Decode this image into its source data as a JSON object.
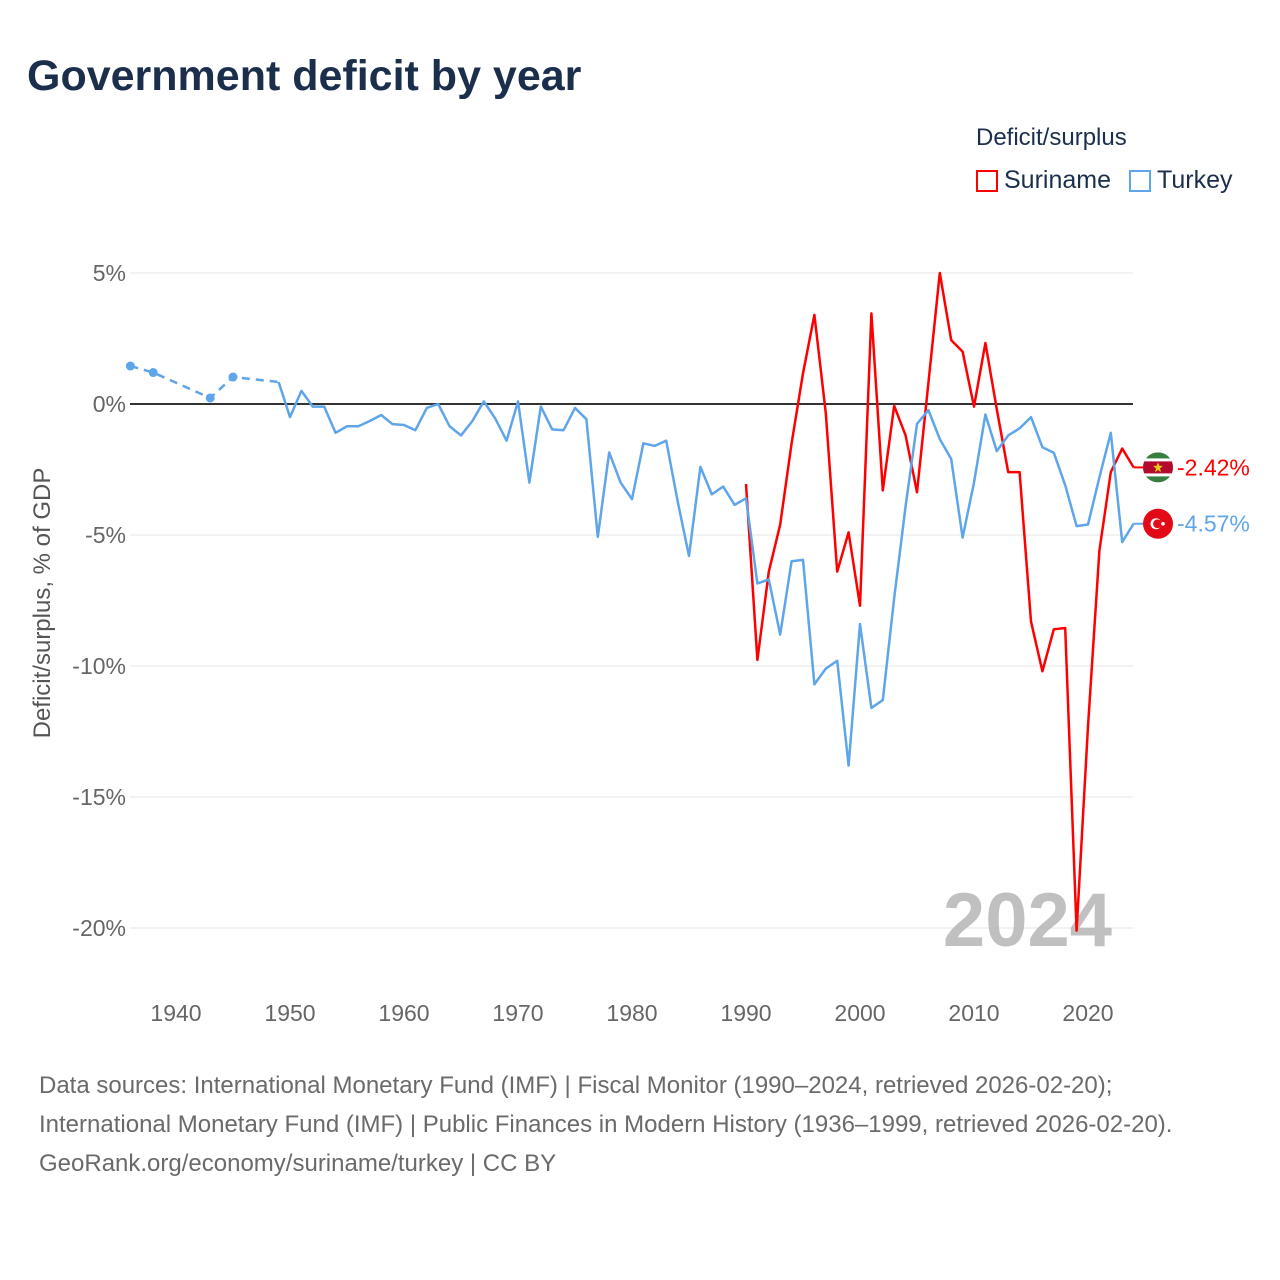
{
  "chart_data": {
    "type": "line",
    "title": "Government deficit by year",
    "ylabel": "Deficit/surplus, % of GDP",
    "xlabel": "",
    "ylim": [
      -20,
      5
    ],
    "xlim": [
      1936,
      2024
    ],
    "y_ticks": [
      5,
      0,
      -5,
      -10,
      -15,
      -20
    ],
    "y_tick_labels": [
      "5%",
      "0%",
      "-5%",
      "-10%",
      "-15%",
      "-20%"
    ],
    "x_ticks": [
      1940,
      1950,
      1960,
      1970,
      1980,
      1990,
      2000,
      2010,
      2020
    ],
    "x_tick_labels": [
      "1940",
      "1950",
      "1960",
      "1970",
      "1980",
      "1990",
      "2000",
      "2010",
      "2020"
    ],
    "grid": true,
    "legend_title": "Deficit/surplus",
    "legend_position": "top-right",
    "year_watermark": "2024",
    "series": [
      {
        "name": "Suriname",
        "color": "#ff0000",
        "end_label": "-2.42%",
        "flag": "suriname-flag",
        "x": [
          1990,
          1991,
          1992,
          1993,
          1994,
          1995,
          1996,
          1997,
          1998,
          1999,
          2000,
          2001,
          2002,
          2003,
          2004,
          2005,
          2006,
          2007,
          2008,
          2009,
          2010,
          2011,
          2012,
          2013,
          2014,
          2015,
          2016,
          2017,
          2018,
          2019,
          2020,
          2021,
          2022,
          2023,
          2024
        ],
        "y": [
          -3.05,
          -9.77,
          -6.4,
          -4.6,
          -1.5,
          1.17,
          3.4,
          -0.35,
          -6.4,
          -4.9,
          -7.7,
          3.46,
          -3.3,
          -0.07,
          -1.2,
          -3.37,
          0.8,
          5.0,
          2.44,
          2.0,
          -0.1,
          2.33,
          -0.2,
          -2.6,
          -2.6,
          -8.3,
          -10.2,
          -8.6,
          -8.55,
          -20.1,
          -12.3,
          -5.6,
          -2.6,
          -1.7,
          -2.42
        ]
      },
      {
        "name": "Turkey",
        "color": "#5ea5ea",
        "end_label": "-4.57%",
        "flag": "turkey-flag",
        "sparse_until": 1949,
        "x": [
          1936,
          1938,
          1943,
          1945,
          1949,
          1950,
          1951,
          1952,
          1953,
          1954,
          1955,
          1956,
          1957,
          1958,
          1959,
          1960,
          1961,
          1962,
          1963,
          1964,
          1965,
          1966,
          1967,
          1968,
          1969,
          1970,
          1971,
          1972,
          1973,
          1974,
          1975,
          1976,
          1977,
          1978,
          1979,
          1980,
          1981,
          1982,
          1983,
          1984,
          1985,
          1986,
          1987,
          1988,
          1989,
          1990,
          1991,
          1992,
          1993,
          1994,
          1995,
          1996,
          1997,
          1998,
          1999,
          2000,
          2001,
          2002,
          2003,
          2004,
          2005,
          2006,
          2007,
          2008,
          2009,
          2010,
          2011,
          2012,
          2013,
          2014,
          2015,
          2016,
          2017,
          2018,
          2019,
          2020,
          2021,
          2022,
          2023,
          2024
        ],
        "y": [
          1.45,
          1.2,
          0.23,
          1.03,
          0.84,
          -0.5,
          0.5,
          -0.1,
          -0.1,
          -1.1,
          -0.85,
          -0.85,
          -0.65,
          -0.42,
          -0.77,
          -0.8,
          -1.0,
          -0.15,
          0.0,
          -0.85,
          -1.2,
          -0.65,
          0.1,
          -0.55,
          -1.4,
          0.1,
          -3.0,
          -0.1,
          -0.97,
          -1.0,
          -0.15,
          -0.58,
          -5.07,
          -1.85,
          -3.0,
          -3.63,
          -1.5,
          -1.6,
          -1.4,
          -3.7,
          -5.8,
          -2.4,
          -3.45,
          -3.15,
          -3.85,
          -3.6,
          -6.85,
          -6.7,
          -8.8,
          -6.0,
          -5.95,
          -10.7,
          -10.1,
          -9.8,
          -13.8,
          -8.4,
          -11.6,
          -11.3,
          -7.4,
          -3.9,
          -0.76,
          -0.23,
          -1.34,
          -2.1,
          -5.1,
          -3.0,
          -0.4,
          -1.8,
          -1.2,
          -0.93,
          -0.5,
          -1.65,
          -1.86,
          -3.1,
          -4.66,
          -4.6,
          -2.8,
          -1.1,
          -5.27,
          -4.57
        ]
      }
    ]
  },
  "footer": {
    "sources": "Data sources: International Monetary Fund (IMF) | Fiscal Monitor (1990–2024, retrieved 2026-02-20); International Monetary Fund (IMF) | Public Finances in Modern History (1936–1999, retrieved 2026-02-20).",
    "credit": "GeoRank.org/economy/suriname/turkey | CC BY"
  }
}
